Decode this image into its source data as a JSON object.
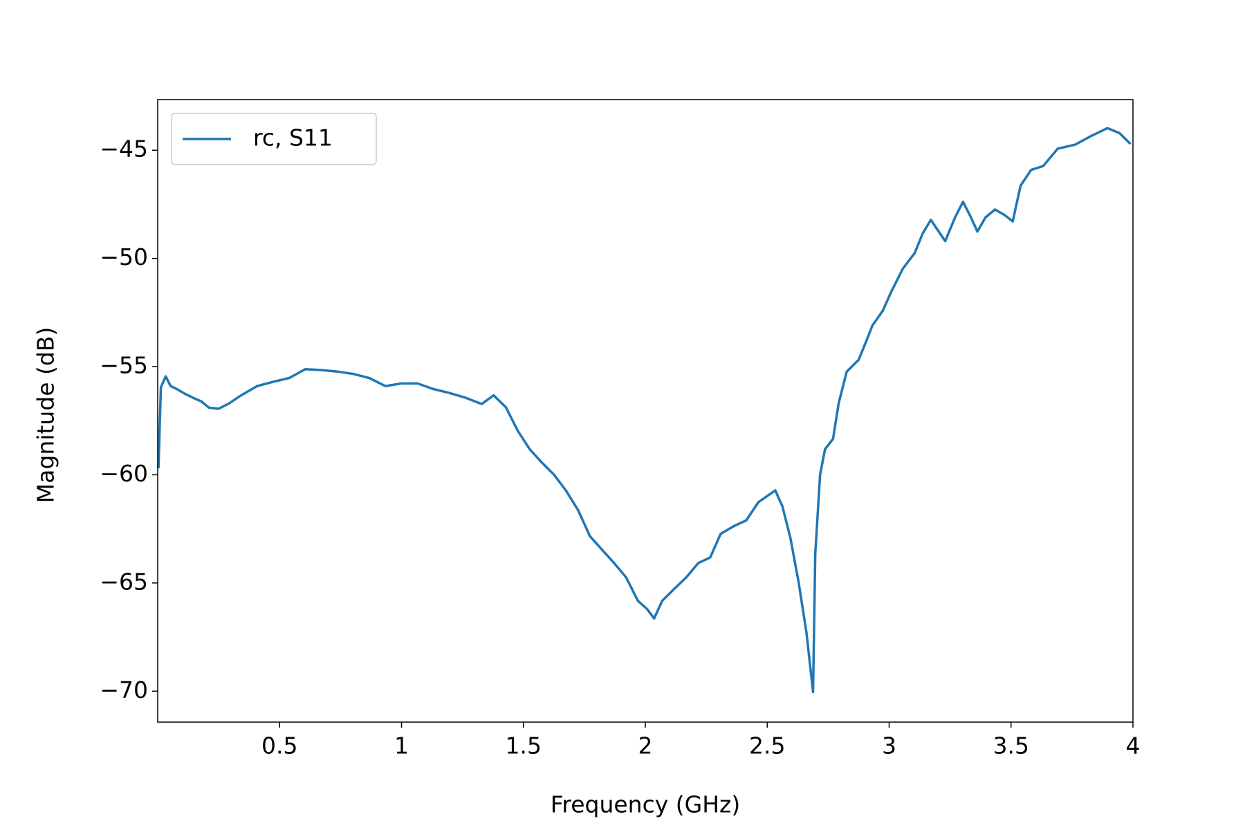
{
  "chart_data": {
    "type": "line",
    "x_label": "Frequency (GHz)",
    "y_label": "Magnitude (dB)",
    "x": [
      0.003,
      0.013,
      0.033,
      0.053,
      0.079,
      0.112,
      0.145,
      0.178,
      0.211,
      0.25,
      0.293,
      0.342,
      0.408,
      0.474,
      0.539,
      0.605,
      0.671,
      0.737,
      0.803,
      0.868,
      0.934,
      1.0,
      1.066,
      1.132,
      1.197,
      1.263,
      1.329,
      1.378,
      1.428,
      1.477,
      1.526,
      1.576,
      1.625,
      1.674,
      1.724,
      1.773,
      1.822,
      1.872,
      1.921,
      1.97,
      2.007,
      2.036,
      2.069,
      2.118,
      2.168,
      2.217,
      2.266,
      2.309,
      2.365,
      2.414,
      2.464,
      2.533,
      2.562,
      2.595,
      2.628,
      2.661,
      2.688,
      2.697,
      2.717,
      2.737,
      2.77,
      2.793,
      2.826,
      2.875,
      2.908,
      2.931,
      2.974,
      3.007,
      3.056,
      3.105,
      3.138,
      3.171,
      3.197,
      3.23,
      3.27,
      3.303,
      3.336,
      3.362,
      3.395,
      3.434,
      3.474,
      3.507,
      3.539,
      3.582,
      3.632,
      3.691,
      3.763,
      3.829,
      3.895,
      3.944,
      3.99
    ],
    "series": [
      {
        "name": "rc, S11",
        "color": "#1f77b4",
        "values": [
          -59.7,
          -55.96,
          -55.45,
          -55.9,
          -56.04,
          -56.26,
          -56.44,
          -56.6,
          -56.9,
          -56.95,
          -56.7,
          -56.33,
          -55.9,
          -55.7,
          -55.53,
          -55.12,
          -55.16,
          -55.23,
          -55.34,
          -55.53,
          -55.9,
          -55.78,
          -55.78,
          -56.04,
          -56.22,
          -56.44,
          -56.73,
          -56.33,
          -56.88,
          -57.97,
          -58.82,
          -59.44,
          -59.99,
          -60.72,
          -61.63,
          -62.84,
          -63.46,
          -64.08,
          -64.74,
          -65.83,
          -66.2,
          -66.64,
          -65.83,
          -65.28,
          -64.74,
          -64.08,
          -63.82,
          -62.73,
          -62.36,
          -62.11,
          -61.26,
          -60.72,
          -61.45,
          -62.91,
          -64.92,
          -67.3,
          -70.04,
          -63.64,
          -59.99,
          -58.82,
          -58.34,
          -56.7,
          -55.23,
          -54.69,
          -53.77,
          -53.11,
          -52.42,
          -51.58,
          -50.48,
          -49.75,
          -48.84,
          -48.22,
          -48.65,
          -49.2,
          -48.11,
          -47.38,
          -48.11,
          -48.76,
          -48.11,
          -47.74,
          -48.0,
          -48.29,
          -46.64,
          -45.91,
          -45.73,
          -44.93,
          -44.74,
          -44.34,
          -43.98,
          -44.2,
          -44.71
        ]
      }
    ],
    "xlim": [
      0,
      4
    ],
    "xticks": [
      0.5,
      1,
      1.5,
      2,
      2.5,
      3,
      3.5,
      4
    ],
    "ylim": [
      -71.43,
      -42.66
    ],
    "yticks": [
      {
        "value": -70,
        "label": "−70"
      },
      {
        "value": -65,
        "label": "−65"
      },
      {
        "value": -60,
        "label": "−60"
      },
      {
        "value": -55,
        "label": "−55"
      },
      {
        "value": -50,
        "label": "−50"
      },
      {
        "value": -45,
        "label": "−45"
      }
    ],
    "legend": "upper left",
    "grid": false
  }
}
